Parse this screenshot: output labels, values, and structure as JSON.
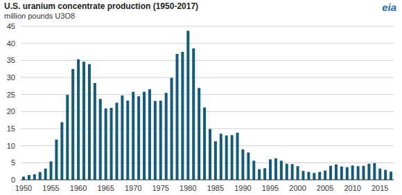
{
  "chart_data": {
    "type": "bar",
    "title": "U.S. uranium concentrate production (1950-2017)",
    "subtitle": "million pounds U3O8",
    "annotations": [
      "eia"
    ],
    "categories": [
      "1950",
      null,
      null,
      null,
      null,
      "1955",
      null,
      null,
      null,
      null,
      "1960",
      null,
      null,
      null,
      null,
      "1965",
      null,
      null,
      null,
      null,
      "1970",
      null,
      null,
      null,
      null,
      "1975",
      null,
      null,
      null,
      null,
      "1980",
      null,
      null,
      null,
      null,
      "1985",
      null,
      null,
      null,
      null,
      "1990",
      null,
      null,
      null,
      null,
      "1995",
      null,
      null,
      null,
      null,
      "2000",
      null,
      null,
      null,
      null,
      "2005",
      null,
      null,
      null,
      null,
      "2010",
      null,
      null,
      null,
      null,
      "2015",
      null,
      null
    ],
    "values": [
      0.9,
      1.4,
      1.6,
      2.3,
      3.3,
      5.4,
      11.8,
      16.9,
      24.9,
      32.5,
      35.3,
      34.6,
      33.9,
      28.4,
      23.7,
      20.9,
      21.1,
      22.6,
      24.7,
      23.2,
      25.8,
      24.5,
      25.8,
      26.5,
      23.1,
      23.2,
      25.5,
      29.9,
      36.9,
      37.5,
      43.7,
      38.5,
      26.9,
      21.2,
      14.9,
      11.3,
      13.5,
      13.0,
      13.1,
      13.8,
      8.9,
      8.0,
      5.6,
      3.1,
      3.4,
      6.0,
      6.3,
      5.6,
      4.7,
      4.6,
      4.0,
      2.6,
      2.3,
      2.0,
      2.3,
      2.7,
      4.1,
      4.5,
      3.9,
      3.7,
      4.2,
      4.0,
      4.1,
      4.7,
      4.9,
      3.3,
      2.9,
      2.4
    ],
    "color": "#135b78",
    "ylim": [
      0,
      45
    ],
    "yticks": [
      0,
      5,
      10,
      15,
      20,
      25,
      30,
      35,
      40,
      45
    ],
    "grid": true
  }
}
